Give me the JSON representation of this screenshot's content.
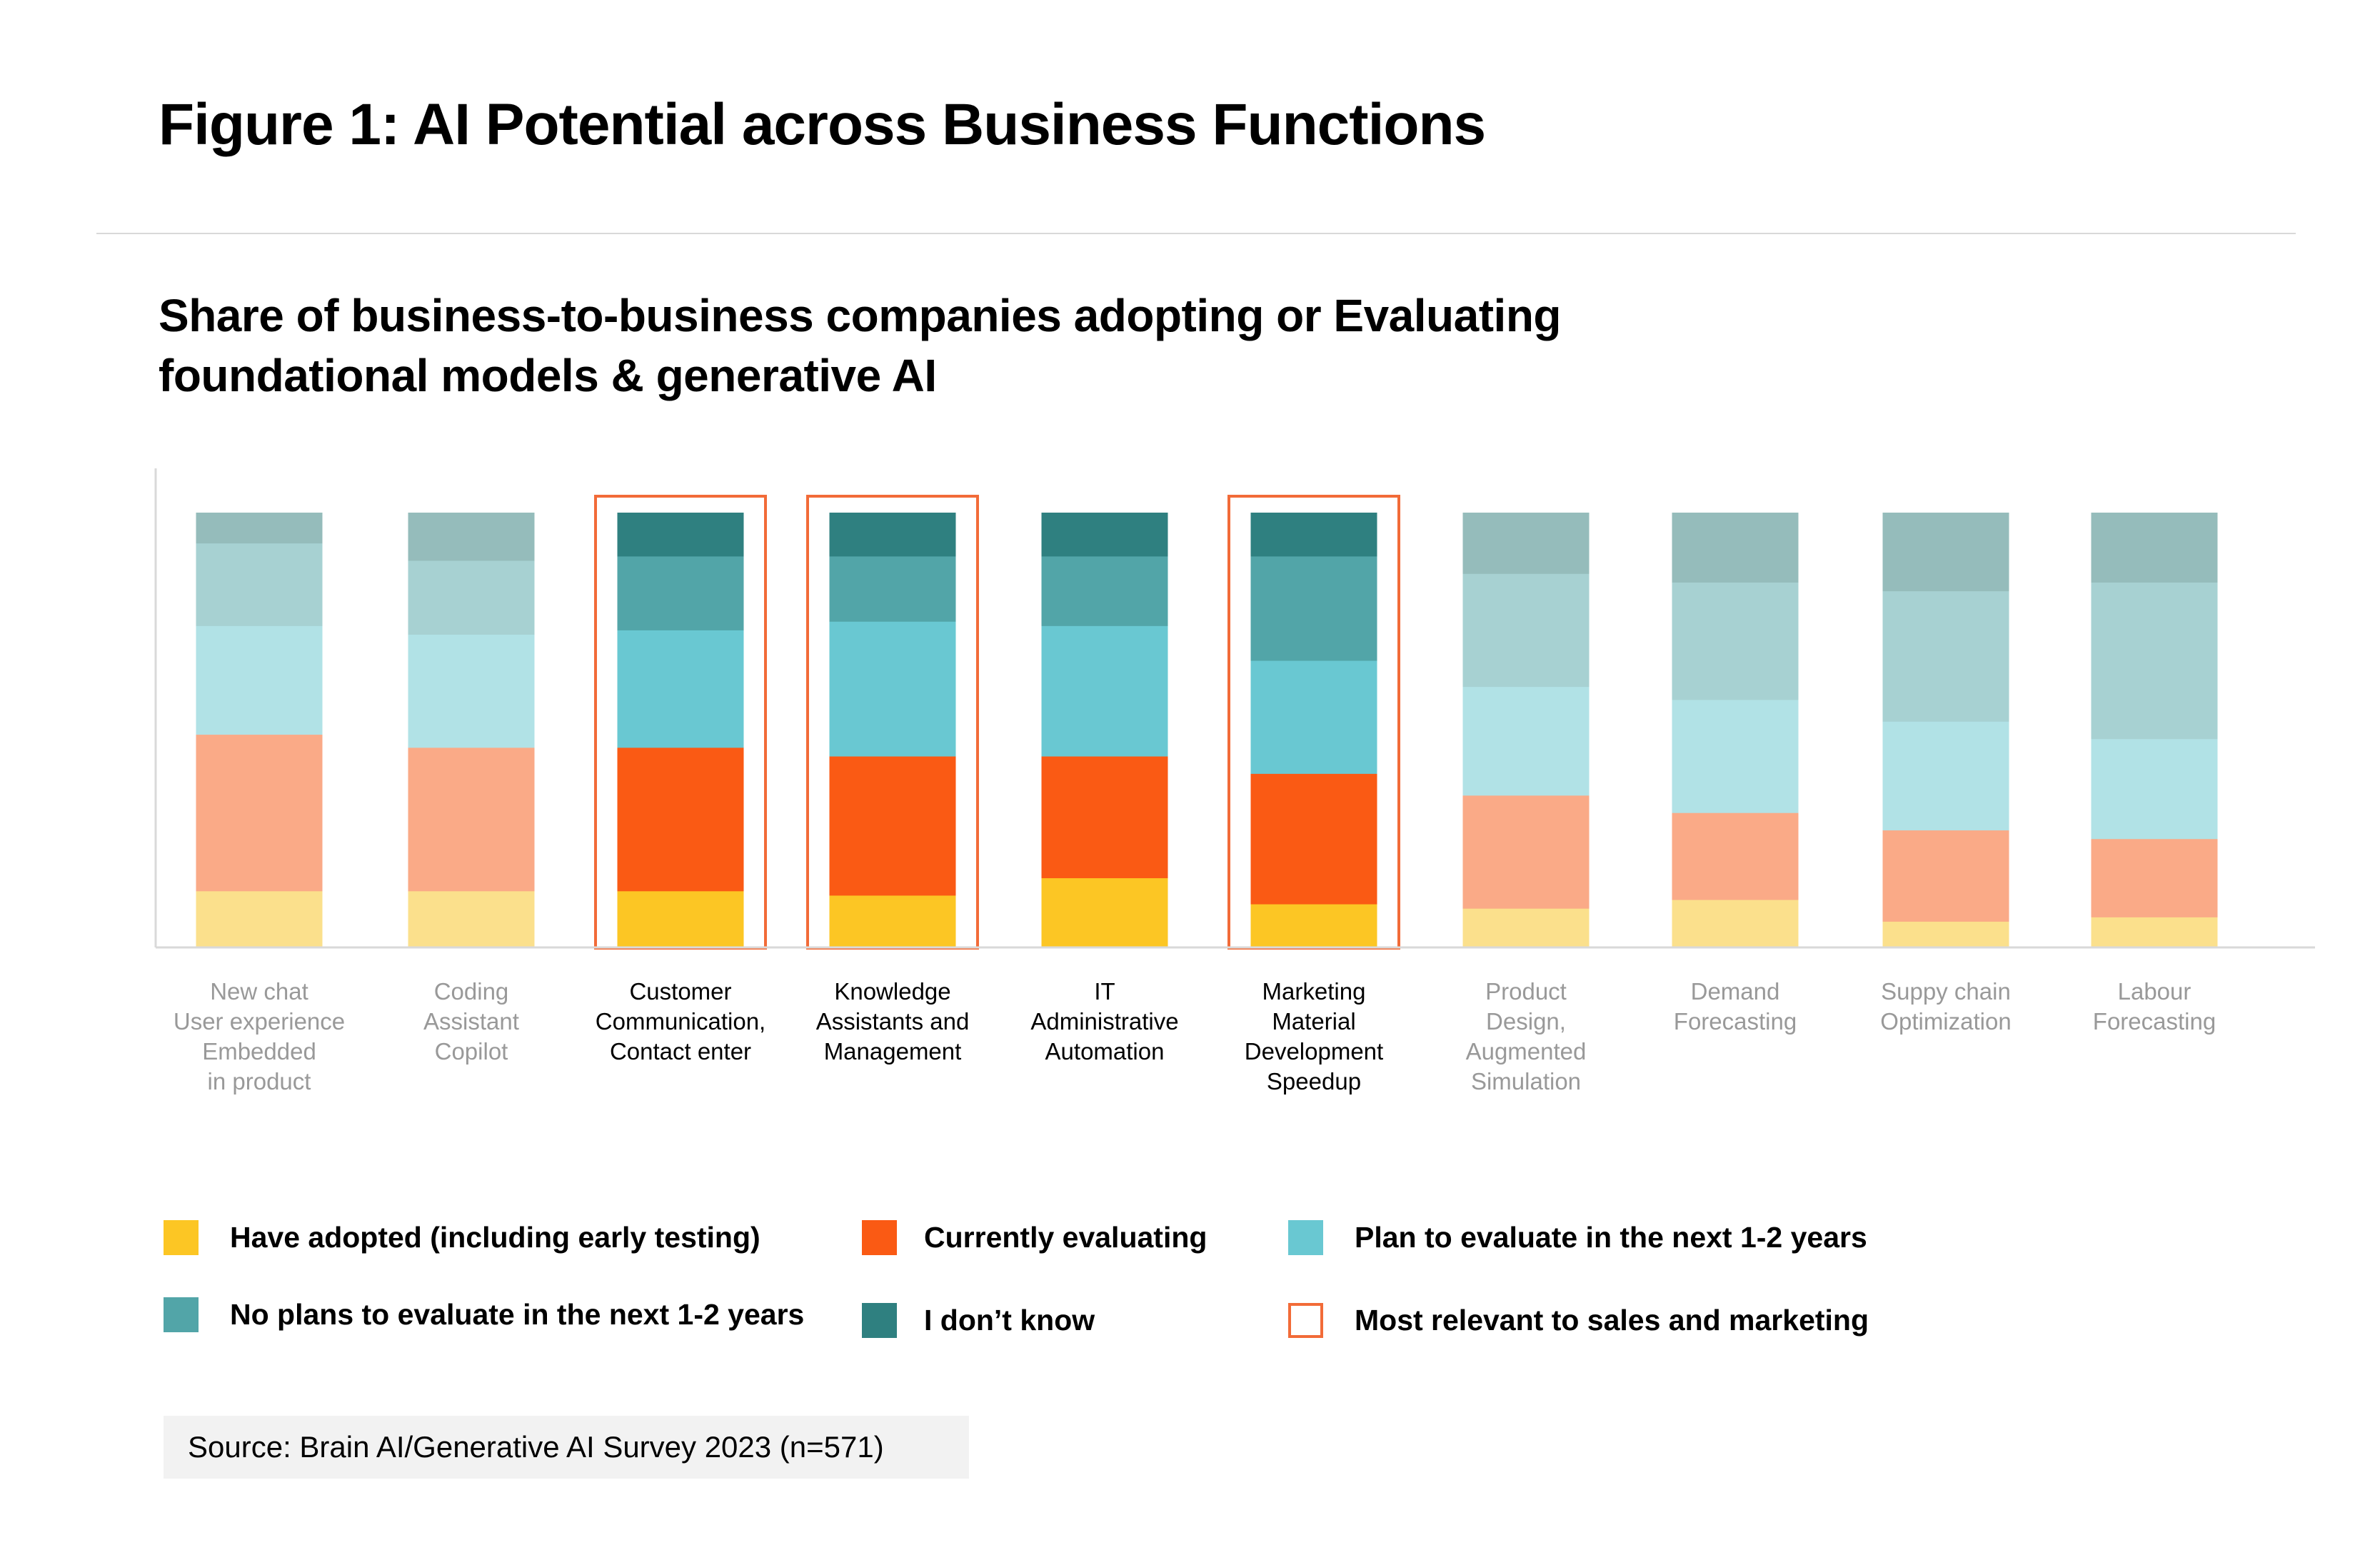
{
  "figure_title": "Figure 1: AI Potential across Business Functions",
  "source": "Source: Brain AI/Generative AI Survey 2023 (n=571)",
  "chart_data": {
    "type": "bar",
    "stacked": true,
    "title": [
      "Share of business-to-business companies adopting or Evaluating",
      "foundational models & generative AI"
    ],
    "xlabel": "",
    "ylabel": "",
    "ylim": [
      0,
      100
    ],
    "grid": false,
    "legend_position": "bottom",
    "categories": [
      [
        "New chat",
        "User experience",
        "Embedded",
        "in product"
      ],
      [
        "Coding",
        "Assistant",
        "Copilot"
      ],
      [
        "Customer",
        "Communication,",
        "Contact enter"
      ],
      [
        "Knowledge",
        "Assistants and",
        "Management"
      ],
      [
        "IT",
        "Administrative",
        "Automation"
      ],
      [
        "Marketing",
        "Material",
        "Development",
        "Speedup"
      ],
      [
        "Product",
        "Design,",
        "Augmented",
        "Simulation"
      ],
      [
        "Demand",
        "Forecasting"
      ],
      [
        "Suppy chain",
        "Optimization"
      ],
      [
        "Labour",
        "Forecasting"
      ]
    ],
    "highlighted": [
      false,
      false,
      true,
      true,
      false,
      true,
      false,
      false,
      false,
      false
    ],
    "emphasized": [
      false,
      false,
      true,
      true,
      true,
      true,
      false,
      false,
      false,
      false
    ],
    "series": [
      {
        "name": "Have adopted (including early testing)",
        "color": "#FCC624",
        "faded_color": "#FBE08C",
        "values": [
          13,
          13,
          13,
          12,
          16,
          10,
          9,
          11,
          6,
          7
        ]
      },
      {
        "name": "Currently evaluating",
        "color": "#FA5A14",
        "faded_color": "#FAAA87",
        "values": [
          36,
          33,
          33,
          32,
          28,
          30,
          26,
          20,
          21,
          18
        ]
      },
      {
        "name": "Plan to evaluate in the next 1-2 years",
        "color": "#69C8D2",
        "faded_color": "#B1E2E6",
        "values": [
          25,
          26,
          27,
          31,
          30,
          26,
          25,
          26,
          25,
          23
        ]
      },
      {
        "name": "No plans to evaluate in the next 1-2 years",
        "color": "#52A5A8",
        "faded_color": "#A7D1D2",
        "values": [
          19,
          17,
          17,
          15,
          16,
          24,
          26,
          27,
          30,
          36
        ]
      },
      {
        "name": "I don’t know",
        "color": "#2F8080",
        "faded_color": "#95BCBB",
        "values": [
          7,
          11,
          10,
          10,
          10,
          10,
          14,
          16,
          18,
          16
        ]
      }
    ],
    "highlight_legend": {
      "name": "Most relevant to sales and marketing",
      "color": "#F26B38"
    }
  }
}
